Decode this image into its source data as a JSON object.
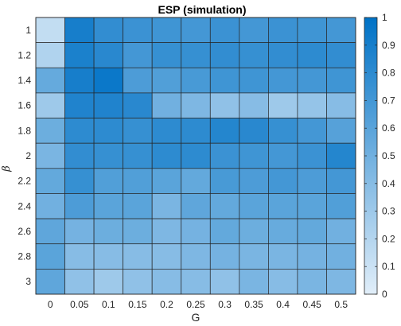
{
  "chart_data": {
    "type": "heatmap",
    "title": "ESP (simulation)",
    "xlabel": "G",
    "ylabel": "β",
    "x_categories": [
      "0",
      "0.05",
      "0.1",
      "0.15",
      "0.2",
      "0.25",
      "0.3",
      "0.35",
      "0.4",
      "0.45",
      "0.5"
    ],
    "y_categories": [
      "1",
      "1.2",
      "1.4",
      "1.6",
      "1.8",
      "2",
      "2.2",
      "2.4",
      "2.6",
      "2.8",
      "3"
    ],
    "values": [
      [
        0.14,
        0.9,
        0.78,
        0.74,
        0.72,
        0.7,
        0.74,
        0.7,
        0.74,
        0.72,
        0.7
      ],
      [
        0.22,
        0.88,
        0.82,
        0.7,
        0.76,
        0.76,
        0.78,
        0.76,
        0.78,
        0.8,
        0.78
      ],
      [
        0.55,
        0.9,
        0.95,
        0.66,
        0.64,
        0.68,
        0.72,
        0.72,
        0.7,
        0.7,
        0.72
      ],
      [
        0.3,
        0.86,
        0.86,
        0.82,
        0.5,
        0.44,
        0.36,
        0.4,
        0.3,
        0.34,
        0.4
      ],
      [
        0.52,
        0.8,
        0.8,
        0.76,
        0.8,
        0.8,
        0.84,
        0.82,
        0.76,
        0.7,
        0.62
      ],
      [
        0.46,
        0.78,
        0.76,
        0.76,
        0.8,
        0.8,
        0.74,
        0.72,
        0.7,
        0.74,
        0.84
      ],
      [
        0.56,
        0.76,
        0.64,
        0.64,
        0.6,
        0.56,
        0.68,
        0.66,
        0.7,
        0.66,
        0.7
      ],
      [
        0.5,
        0.66,
        0.6,
        0.6,
        0.46,
        0.58,
        0.56,
        0.6,
        0.6,
        0.6,
        0.64
      ],
      [
        0.58,
        0.48,
        0.52,
        0.52,
        0.44,
        0.48,
        0.56,
        0.52,
        0.54,
        0.56,
        0.5
      ],
      [
        0.6,
        0.4,
        0.4,
        0.4,
        0.4,
        0.44,
        0.48,
        0.46,
        0.46,
        0.48,
        0.5
      ],
      [
        0.58,
        0.36,
        0.3,
        0.36,
        0.4,
        0.4,
        0.36,
        0.46,
        0.4,
        0.46,
        0.44
      ]
    ],
    "clim": [
      0,
      1
    ],
    "colorbar_ticks": [
      "0",
      "0.1",
      "0.2",
      "0.3",
      "0.4",
      "0.5",
      "0.6",
      "0.7",
      "0.8",
      "0.9",
      "1"
    ],
    "colormap": [
      "#e1eef9",
      "#0072c6"
    ],
    "grid": "on"
  }
}
